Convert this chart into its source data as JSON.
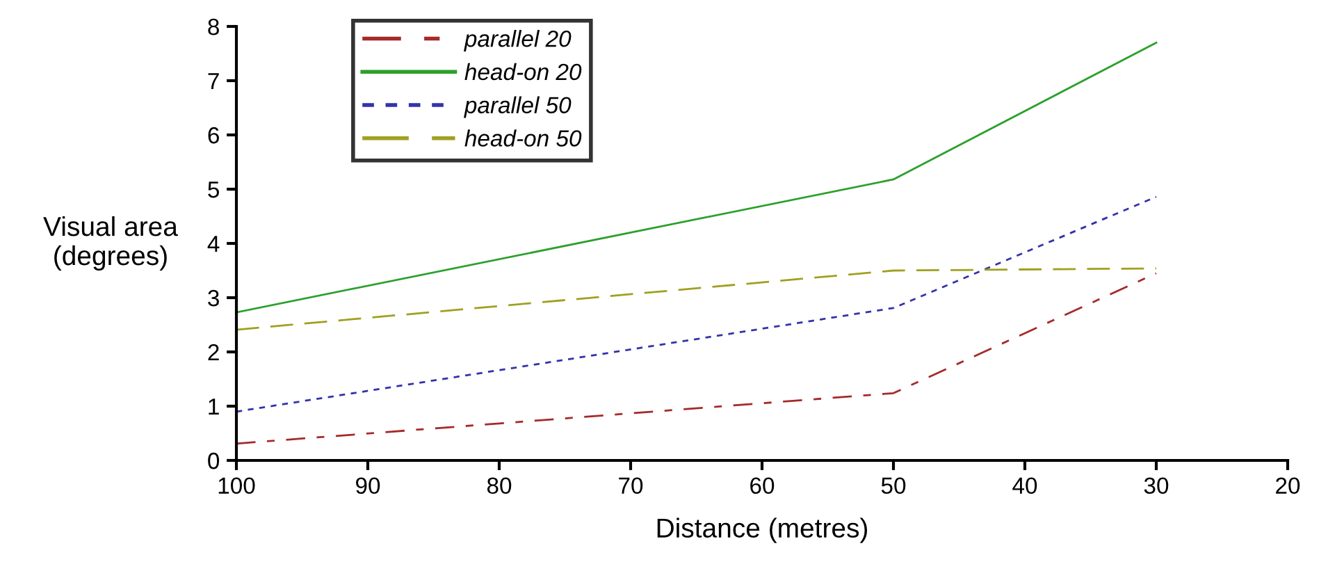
{
  "chart_data": {
    "type": "line",
    "xlabel": "Distance (metres)",
    "ylabel": "Visual area\n(degrees)",
    "x": [
      100,
      50,
      30
    ],
    "series": [
      {
        "name": "parallel 20",
        "color": "#a52a2a",
        "values": [
          0.31,
          1.24,
          3.45
        ],
        "line_style": "dashed"
      },
      {
        "name": "head-on 20",
        "color": "#2ca02c",
        "values": [
          2.73,
          5.18,
          7.7
        ],
        "line_style": "solid"
      },
      {
        "name": "parallel 50",
        "color": "#3333aa",
        "values": [
          0.9,
          2.81,
          4.86
        ],
        "line_style": "dashed"
      },
      {
        "name": "head-on 50",
        "color": "#a0a020",
        "values": [
          2.41,
          3.5,
          3.54
        ],
        "line_style": "dashed"
      }
    ],
    "xlim": [
      100,
      20
    ],
    "xticks": [
      100,
      90,
      80,
      70,
      60,
      50,
      40,
      30,
      20
    ],
    "ylim": [
      0,
      8
    ],
    "yticks": [
      0,
      1,
      2,
      3,
      4,
      5,
      6,
      7,
      8
    ],
    "grid": false,
    "legend": "top left",
    "marker": "none"
  }
}
